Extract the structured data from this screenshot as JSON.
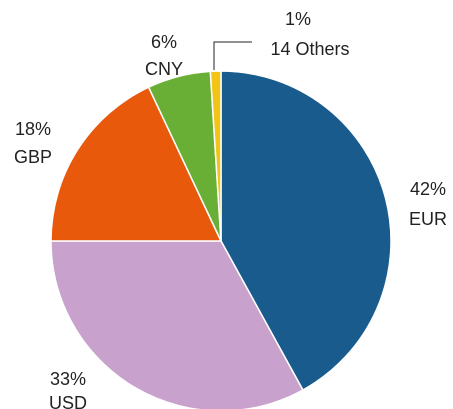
{
  "chart_data": {
    "type": "pie",
    "categories": [
      "EUR",
      "USD",
      "GBP",
      "CNY",
      "14 Others"
    ],
    "values": [
      42,
      33,
      18,
      6,
      1
    ],
    "value_labels": [
      "42%",
      "33%",
      "18%",
      "6%",
      "1%"
    ],
    "colors": [
      "#185b8c",
      "#c8a2cc",
      "#e8590c",
      "#6aaf35",
      "#f2c417"
    ]
  }
}
